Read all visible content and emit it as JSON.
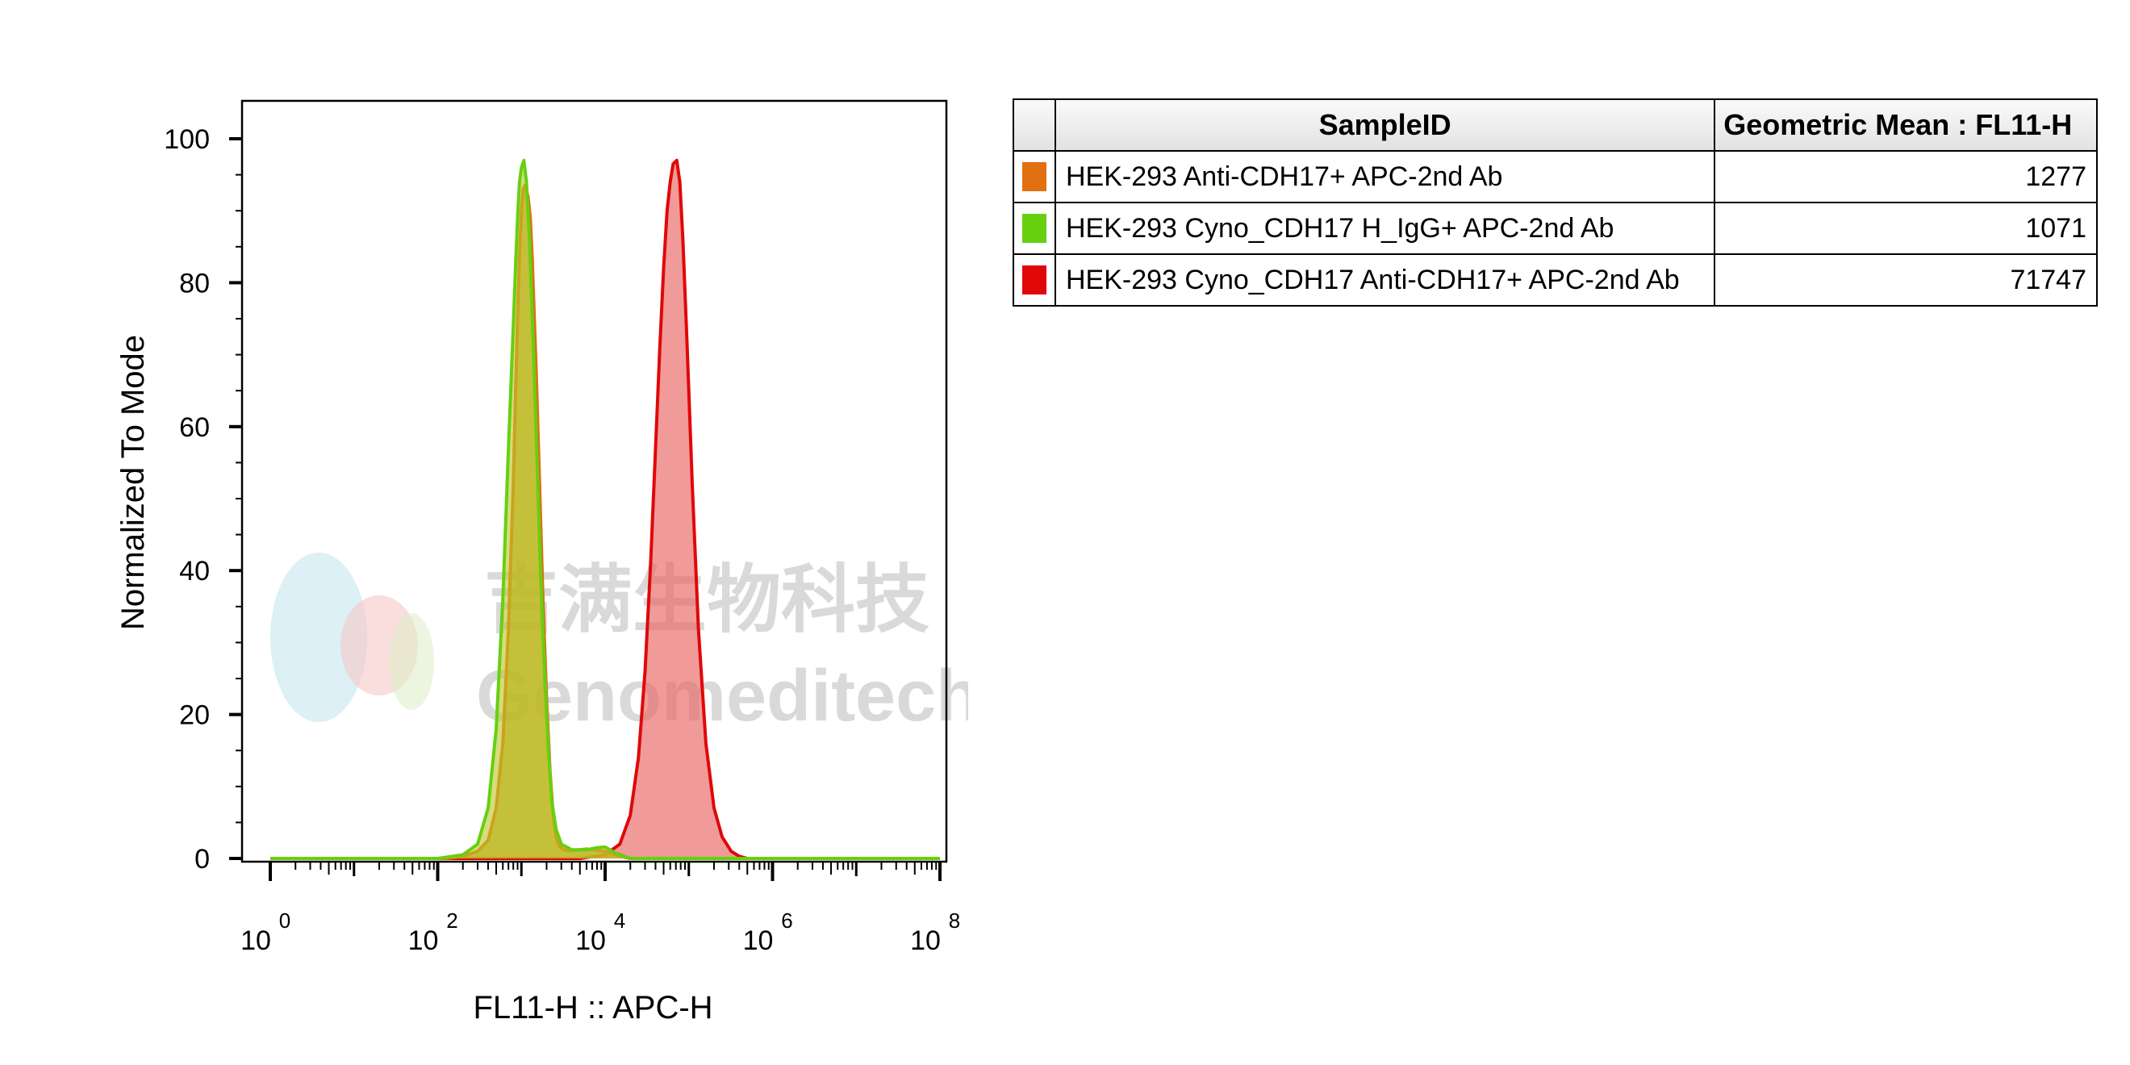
{
  "chart_data": {
    "type": "area",
    "xscale": "log",
    "xlim": [
      1,
      100000000
    ],
    "ylim": [
      0,
      100
    ],
    "x_ticks": [
      {
        "base": "10",
        "exp": "0"
      },
      {
        "base": "10",
        "exp": "2"
      },
      {
        "base": "10",
        "exp": "4"
      },
      {
        "base": "10",
        "exp": "6"
      },
      {
        "base": "10",
        "exp": "8"
      }
    ],
    "y_ticks": [
      "0",
      "20",
      "40",
      "60",
      "80",
      "100"
    ],
    "xlabel": "FL11-H :: APC-H",
    "ylabel": "Normalized To Mode",
    "series": [
      {
        "name": "HEK-293 Anti-CDH17+ APC-2nd Ab",
        "color": "#e07010",
        "fill": "rgba(198,160,30,0.75)",
        "x": [
          1,
          130,
          200,
          300,
          400,
          500,
          600,
          700,
          800,
          850,
          900,
          950,
          1000,
          1050,
          1100,
          1200,
          1277,
          1350,
          1500,
          1650,
          1800,
          2000,
          2200,
          2400,
          2600,
          2800,
          3200,
          4000,
          6000,
          10000,
          15000,
          20000,
          100000000
        ],
        "y": [
          0,
          0,
          0.3,
          1,
          2.5,
          7,
          16,
          32,
          52,
          64,
          75,
          84,
          90,
          93,
          93.5,
          92,
          89,
          83,
          68,
          52,
          37,
          22,
          12,
          6,
          3,
          1.8,
          1.2,
          1.1,
          1.3,
          1,
          0.3,
          0,
          0
        ]
      },
      {
        "name": "HEK-293 Cyno_CDH17 H_IgG+ APC-2nd Ab",
        "color": "#66d010",
        "fill": "rgba(186,196,40,0.6)",
        "x": [
          1,
          100,
          200,
          300,
          400,
          500,
          600,
          700,
          800,
          850,
          900,
          950,
          1000,
          1071,
          1150,
          1250,
          1400,
          1550,
          1700,
          1900,
          2100,
          2300,
          2600,
          3000,
          4000,
          6000,
          8000,
          10000,
          13000,
          20000,
          100000000
        ],
        "y": [
          0,
          0,
          0.5,
          2,
          7,
          18,
          36,
          57,
          74,
          82,
          89,
          94,
          96,
          97,
          94,
          86,
          70,
          54,
          39,
          25,
          15,
          8,
          4,
          2,
          1.2,
          1.2,
          1.5,
          1.6,
          0.8,
          0,
          0
        ]
      },
      {
        "name": "HEK-293 Cyno_CDH17 Anti-CDH17+ APC-2nd Ab",
        "color": "#e00808",
        "fill": "rgba(232,100,100,0.65)",
        "x": [
          1,
          5000,
          10000,
          15000,
          20000,
          25000,
          30000,
          35000,
          40000,
          45000,
          50000,
          55000,
          60000,
          65000,
          71747,
          78000,
          85000,
          95000,
          110000,
          130000,
          160000,
          200000,
          250000,
          320000,
          400000,
          500000,
          100000000
        ],
        "y": [
          0,
          0,
          0.5,
          2,
          6,
          14,
          26,
          41,
          57,
          71,
          82,
          90,
          94,
          96.5,
          97,
          94,
          86,
          72,
          52,
          32,
          16,
          7,
          3,
          1,
          0.3,
          0,
          0
        ]
      }
    ],
    "legend_table": {
      "headers": [
        "",
        "SampleID",
        "Geometric Mean : FL11-H"
      ],
      "rows": [
        {
          "swatch": "#e07010",
          "sample": "HEK-293 Anti-CDH17+ APC-2nd Ab",
          "value": "1277"
        },
        {
          "swatch": "#66d010",
          "sample": "HEK-293 Cyno_CDH17 H_IgG+ APC-2nd Ab",
          "value": "1071"
        },
        {
          "swatch": "#e00808",
          "sample": "HEK-293 Cyno_CDH17 Anti-CDH17+ APC-2nd Ab",
          "value": "71747"
        }
      ]
    }
  },
  "watermark": {
    "cn": "吉满生物科技",
    "en": "Genomeditech"
  }
}
